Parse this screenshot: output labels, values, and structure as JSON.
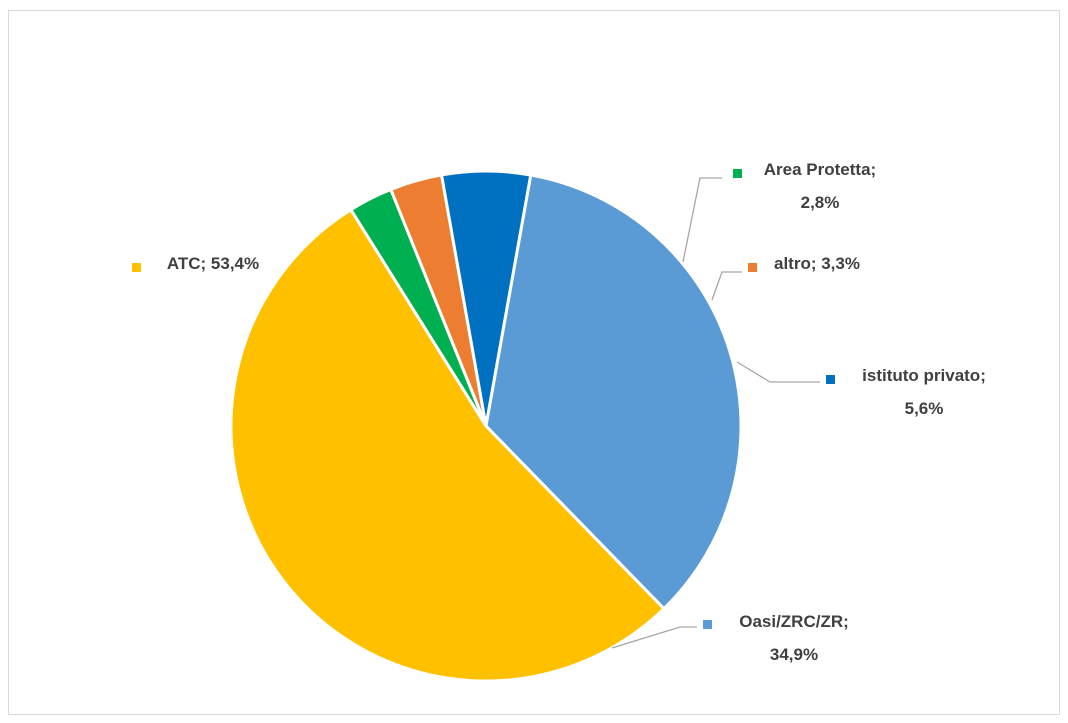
{
  "chart_data": {
    "type": "pie",
    "title": "",
    "slices": [
      {
        "label": "Area Protetta",
        "value": 2.8,
        "value_text": "2,8%",
        "color": "#00B050"
      },
      {
        "label": "altro",
        "value": 3.3,
        "value_text": "3,3%",
        "color": "#ED7D31"
      },
      {
        "label": "istituto privato",
        "value": 5.6,
        "value_text": "5,6%",
        "color": "#0070C0"
      },
      {
        "label": "Oasi/ZRC/ZR",
        "value": 34.9,
        "value_text": "34,9%",
        "color": "#5B9BD5"
      },
      {
        "label": "ATC",
        "value": 53.4,
        "value_text": "53,4%",
        "color": "#FFC000"
      }
    ],
    "legend": "none",
    "data_labels": "category; percentage with leader lines"
  }
}
